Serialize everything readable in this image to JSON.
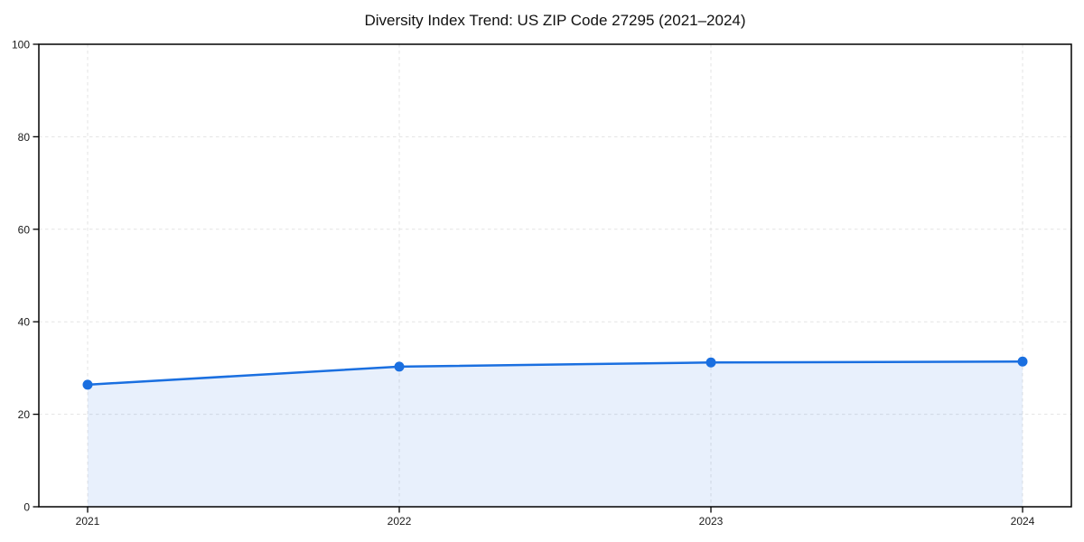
{
  "page": {
    "background": "#ffffff"
  },
  "chart_data": {
    "type": "line",
    "title": "Diversity Index Trend: US ZIP Code 27295 (2021–2024)",
    "x": [
      2021,
      2022,
      2023,
      2024
    ],
    "xtick_labels": [
      "2021",
      "2022",
      "2023",
      "2024"
    ],
    "series": [
      {
        "name": "Diversity Index",
        "values": [
          26.4,
          30.3,
          31.2,
          31.4
        ]
      }
    ],
    "xlabel": "",
    "ylabel": "",
    "ylim": [
      0,
      100
    ],
    "yticks": [
      0,
      20,
      40,
      60,
      80,
      100
    ],
    "grid": "dashed-both-axes",
    "legend": "none",
    "area_fill": true,
    "marker": {
      "shape": "circle",
      "size": 5.5
    },
    "colors": {
      "line": "#1a6fe0",
      "fill": "#1a6fe0",
      "fill_opacity": 0.1,
      "grid": "#e3e3e3",
      "spine": "#000000",
      "text": "#1a1a1a"
    }
  }
}
